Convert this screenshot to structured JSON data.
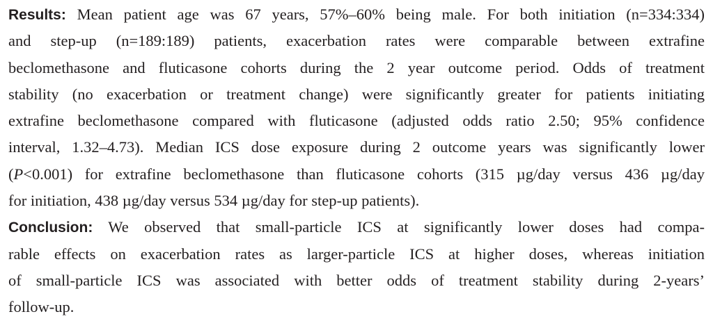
{
  "results": {
    "heading": "Results:",
    "lines": [
      " Mean patient age was 67 years, 57%–60% being male. For both initiation (n=334:334)",
      "and step-up (n=189:189) patients, exacerbation rates were comparable between extrafine",
      "beclomethasone and fluticasone cohorts during the 2 year outcome period. Odds of treatment",
      "stability (no exacerbation or treatment change) were significantly greater for patients initiating",
      "extrafine beclomethasone compared with fluticasone (adjusted odds ratio 2.50; 95% confidence",
      "interval, 1.32–4.73). Median ICS dose exposure during 2 outcome years was significantly lower"
    ],
    "line7_open": "(",
    "line7_p": "P",
    "line7_rest": "<0.001) for extrafine beclomethasone than fluticasone cohorts (315 µg/day versus 436 µg/day",
    "line8": "for initiation, 438 µg/day versus 534 µg/day for step-up patients)."
  },
  "conclusion": {
    "heading": "Conclusion:",
    "lines": [
      " We observed that small-particle ICS at significantly lower doses had compa-",
      "rable effects on exacerbation rates as larger-particle ICS at higher doses, whereas initiation",
      "of small-particle ICS was associated with better odds of treatment stability during 2-years’",
      "follow-up."
    ]
  }
}
